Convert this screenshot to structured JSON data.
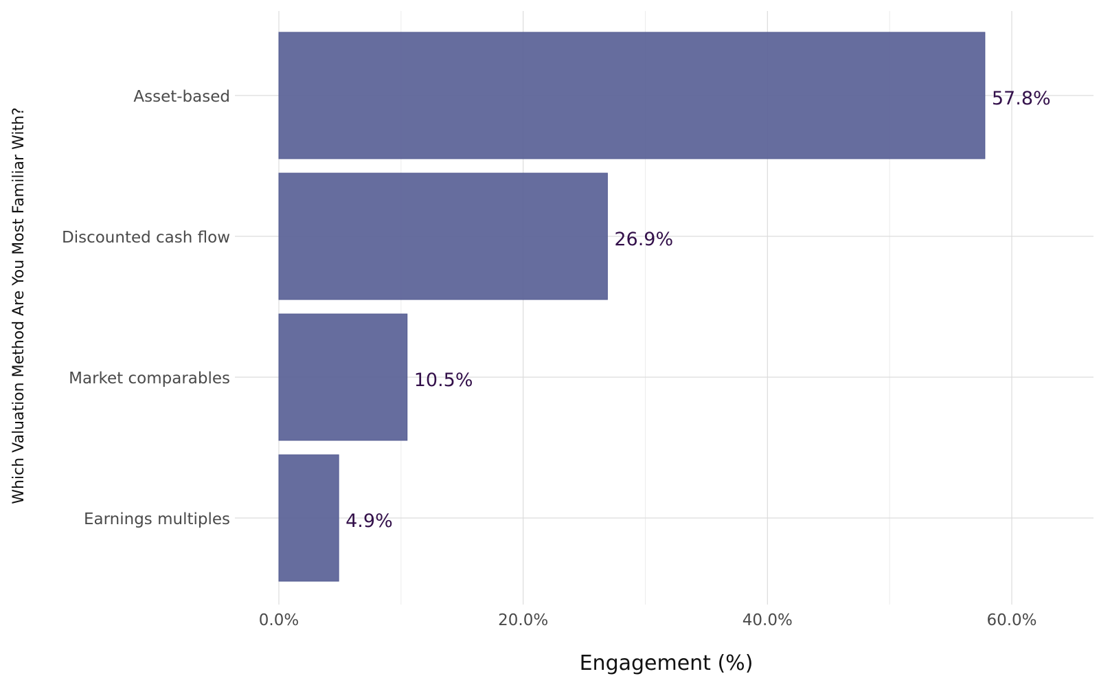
{
  "chart_data": {
    "type": "bar",
    "orientation": "horizontal",
    "categories": [
      "Asset-based",
      "Discounted cash flow",
      "Market comparables",
      "Earnings multiples"
    ],
    "values": [
      57.8,
      26.9,
      10.5,
      4.9
    ],
    "value_labels": [
      "57.8%",
      "26.9%",
      "10.5%",
      "4.9%"
    ],
    "title": "",
    "xlabel": "Engagement (%)",
    "ylabel": "Which Valuation Method Are You Most Familiar With?",
    "xlim": [
      0,
      67
    ],
    "x_ticks": [
      0,
      20,
      40,
      60
    ],
    "x_tick_labels": [
      "0.0%",
      "20.0%",
      "40.0%",
      "60.0%"
    ],
    "grid": true,
    "legend": "none",
    "colors": {
      "bar": "#5a6297",
      "data_label": "#33104a",
      "grid": "#dcdcdc",
      "background": "#ffffff"
    }
  }
}
